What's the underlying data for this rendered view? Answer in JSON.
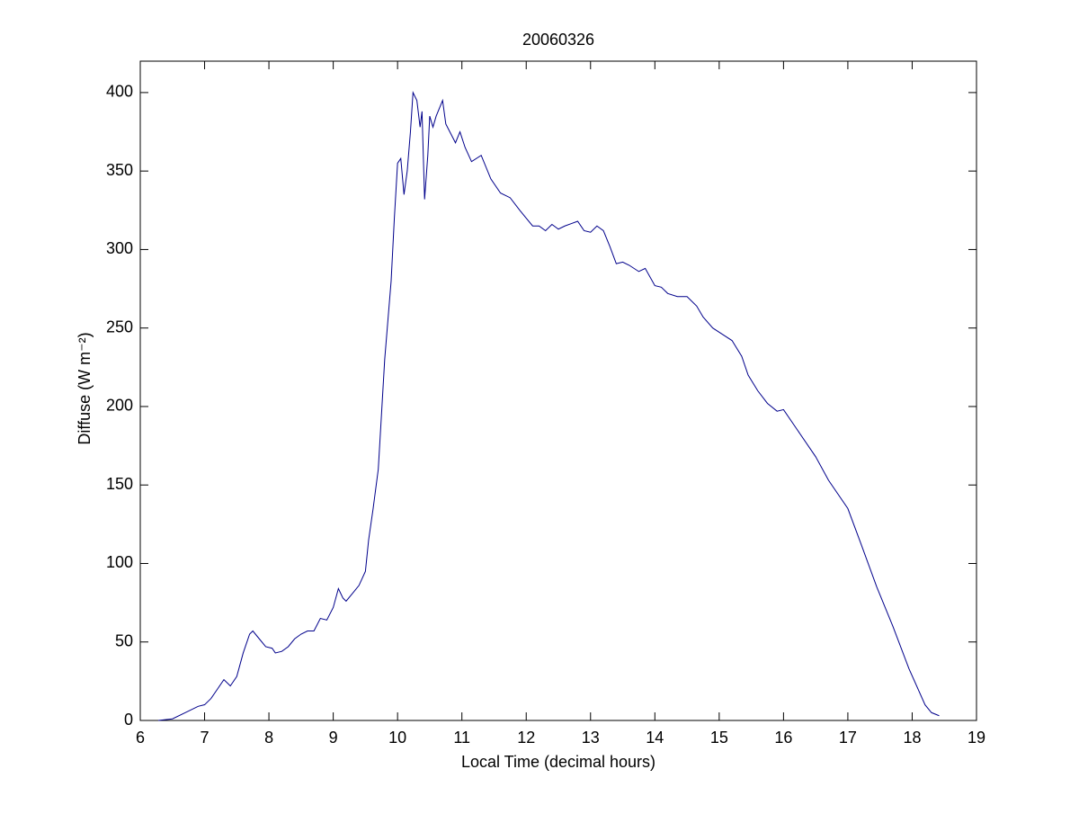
{
  "chart_data": {
    "type": "line",
    "title": "20060326",
    "x_label": "Local Time (decimal hours)",
    "y_label": "Diffuse (W m⁻²)",
    "x": [
      6.28,
      6.5,
      6.7,
      6.9,
      7.0,
      7.1,
      7.2,
      7.3,
      7.4,
      7.5,
      7.6,
      7.7,
      7.75,
      7.85,
      7.95,
      8.05,
      8.1,
      8.2,
      8.3,
      8.4,
      8.5,
      8.6,
      8.7,
      8.8,
      8.9,
      9.0,
      9.08,
      9.15,
      9.2,
      9.3,
      9.4,
      9.5,
      9.55,
      9.62,
      9.7,
      9.75,
      9.8,
      9.9,
      9.95,
      10.0,
      10.05,
      10.1,
      10.15,
      10.2,
      10.24,
      10.3,
      10.35,
      10.38,
      10.42,
      10.47,
      10.5,
      10.55,
      10.6,
      10.7,
      10.75,
      10.9,
      10.97,
      11.05,
      11.15,
      11.3,
      11.45,
      11.6,
      11.75,
      11.9,
      12.0,
      12.1,
      12.2,
      12.3,
      12.4,
      12.5,
      12.6,
      12.8,
      12.9,
      13.0,
      13.1,
      13.2,
      13.3,
      13.4,
      13.5,
      13.6,
      13.75,
      13.85,
      14.0,
      14.1,
      14.2,
      14.35,
      14.5,
      14.65,
      14.75,
      14.9,
      15.05,
      15.2,
      15.35,
      15.45,
      15.6,
      15.75,
      15.9,
      16.0,
      16.2,
      16.5,
      16.7,
      17.0,
      17.2,
      17.45,
      17.7,
      17.95,
      18.2,
      18.3,
      18.42
    ],
    "series": [
      {
        "name": "Diffuse",
        "color": "#00008b",
        "values": [
          0,
          1,
          5,
          9,
          10,
          14,
          20,
          26,
          22,
          28,
          43,
          55,
          57,
          52,
          47,
          46,
          43,
          44,
          47,
          52,
          55,
          57,
          57,
          65,
          64,
          72,
          84,
          78,
          76,
          81,
          86,
          95,
          115,
          135,
          160,
          195,
          230,
          280,
          320,
          355,
          358,
          335,
          350,
          375,
          400,
          395,
          378,
          388,
          332,
          360,
          385,
          378,
          385,
          395,
          380,
          368,
          375,
          365,
          356,
          360,
          345,
          336,
          333,
          325,
          320,
          315,
          315,
          312,
          316,
          313,
          315,
          318,
          312,
          311,
          315,
          312,
          302,
          291,
          292,
          290,
          286,
          288,
          277,
          276,
          272,
          270,
          270,
          264,
          257,
          250,
          246,
          242,
          232,
          220,
          210,
          202,
          197,
          198,
          186,
          168,
          153,
          135,
          113,
          85,
          60,
          33,
          10,
          5,
          3
        ]
      }
    ],
    "xlim": [
      6,
      19
    ],
    "xticks": [
      6,
      7,
      8,
      9,
      10,
      11,
      12,
      13,
      14,
      15,
      16,
      17,
      18,
      19
    ],
    "ylim": [
      0,
      420
    ],
    "yticks": [
      0,
      50,
      100,
      150,
      200,
      250,
      300,
      350,
      400
    ]
  }
}
